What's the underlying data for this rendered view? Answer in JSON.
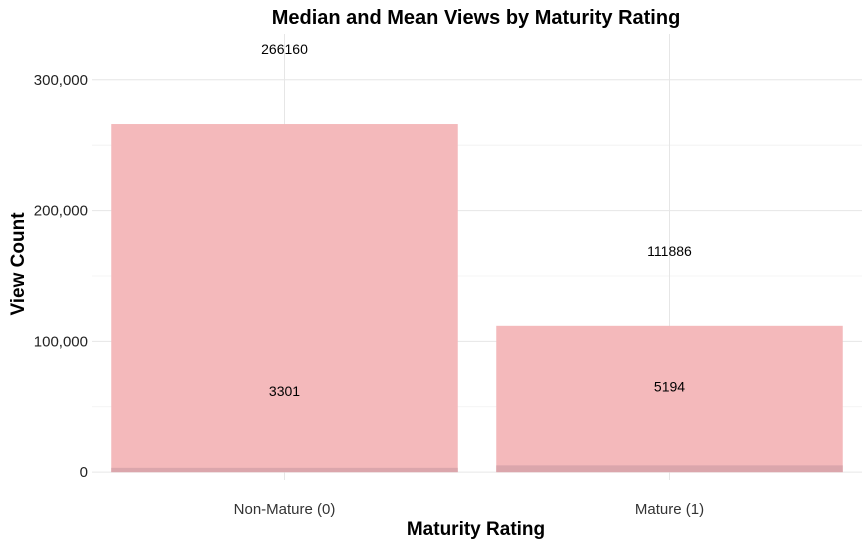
{
  "chart_data": {
    "type": "bar",
    "title": "Median and Mean Views by Maturity Rating",
    "xlabel": "Maturity Rating",
    "ylabel": "View Count",
    "categories": [
      "Non-Mature (0)",
      "Mature (1)"
    ],
    "series": [
      {
        "values": [
          266160,
          111886
        ],
        "color": "#f4b9bb"
      },
      {
        "values": [
          3301,
          5194
        ],
        "color": "#dba6ac"
      }
    ],
    "value_labels": {
      "mean": [
        "266160",
        "111886"
      ],
      "median": [
        "3301",
        "5194"
      ]
    },
    "y_ticks": [
      0,
      100000,
      200000,
      300000
    ],
    "y_tick_labels": [
      "0",
      "100,000",
      "200,000",
      "300,000"
    ],
    "ylim": [
      -6000,
      335000
    ],
    "grid": true,
    "legend": "none"
  }
}
